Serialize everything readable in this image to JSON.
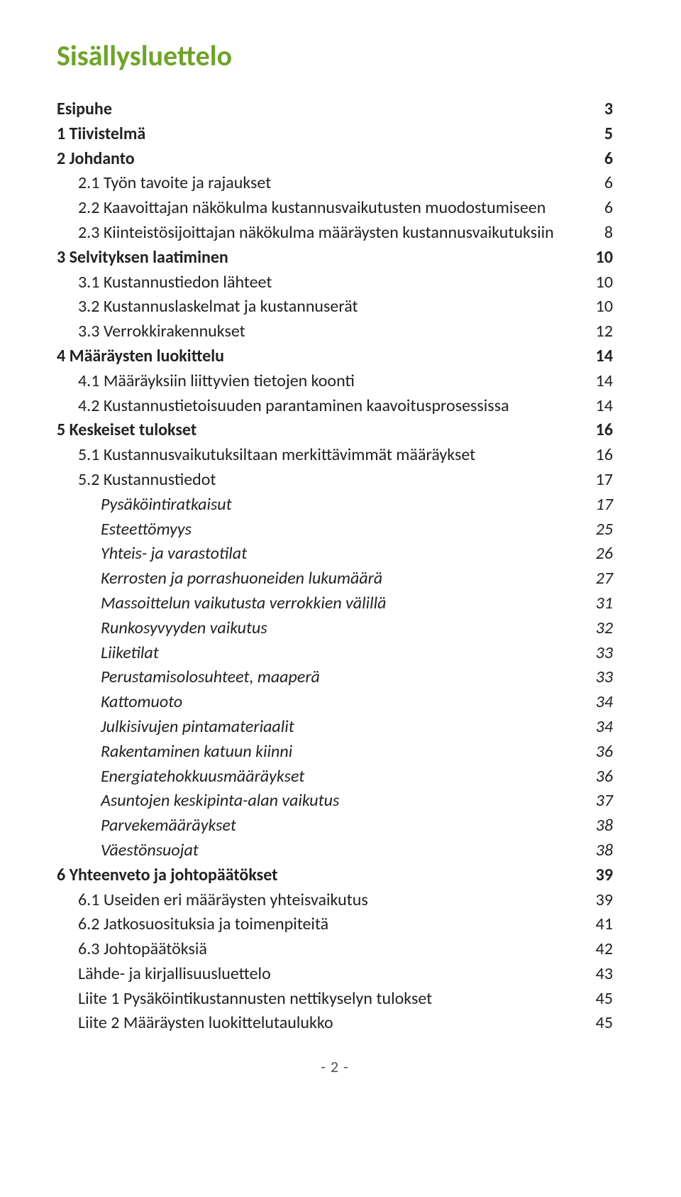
{
  "title": "Sisällysluettelo",
  "footer": "- 2 -",
  "title_color": "#6fa32a",
  "text_color": "#222222",
  "toc": [
    {
      "label": "Esipuhe",
      "page": "3",
      "bold": true,
      "indent": 0,
      "italic": false
    },
    {
      "label": "1 Tiivistelmä",
      "page": "5",
      "bold": true,
      "indent": 0,
      "italic": false
    },
    {
      "label": "2 Johdanto",
      "page": "6",
      "bold": true,
      "indent": 0,
      "italic": false
    },
    {
      "label": "2.1 Työn tavoite ja rajaukset",
      "page": "6",
      "bold": false,
      "indent": 1,
      "italic": false
    },
    {
      "label": "2.2 Kaavoittajan näkökulma kustannusvaikutusten muodostumiseen",
      "page": "6",
      "bold": false,
      "indent": 1,
      "italic": false
    },
    {
      "label": "2.3 Kiinteistösijoittajan näkökulma määräysten kustannusvaikutuksiin",
      "page": "8",
      "bold": false,
      "indent": 1,
      "italic": false
    },
    {
      "label": "3 Selvityksen laatiminen",
      "page": "10",
      "bold": true,
      "indent": 0,
      "italic": false
    },
    {
      "label": "3.1 Kustannustiedon lähteet",
      "page": "10",
      "bold": false,
      "indent": 1,
      "italic": false
    },
    {
      "label": "3.2 Kustannuslaskelmat ja kustannuserät",
      "page": "10",
      "bold": false,
      "indent": 1,
      "italic": false
    },
    {
      "label": "3.3 Verrokkirakennukset",
      "page": "12",
      "bold": false,
      "indent": 1,
      "italic": false
    },
    {
      "label": "4 Määräysten luokittelu",
      "page": "14",
      "bold": true,
      "indent": 0,
      "italic": false
    },
    {
      "label": "4.1 Määräyksiin liittyvien tietojen koonti",
      "page": "14",
      "bold": false,
      "indent": 1,
      "italic": false
    },
    {
      "label": "4.2 Kustannustietoisuuden parantaminen kaavoitusprosessissa",
      "page": "14",
      "bold": false,
      "indent": 1,
      "italic": false
    },
    {
      "label": "5 Keskeiset tulokset",
      "page": "16",
      "bold": true,
      "indent": 0,
      "italic": false
    },
    {
      "label": "5.1 Kustannusvaikutuksiltaan merkittävimmät määräykset",
      "page": "16",
      "bold": false,
      "indent": 1,
      "italic": false
    },
    {
      "label": "5.2 Kustannustiedot",
      "page": "17",
      "bold": false,
      "indent": 1,
      "italic": false
    },
    {
      "label": "Pysäköintiratkaisut",
      "page": "17",
      "bold": false,
      "indent": 2,
      "italic": true
    },
    {
      "label": "Esteettömyys",
      "page": "25",
      "bold": false,
      "indent": 2,
      "italic": true
    },
    {
      "label": "Yhteis- ja varastotilat",
      "page": "26",
      "bold": false,
      "indent": 2,
      "italic": true
    },
    {
      "label": "Kerrosten ja porrashuoneiden lukumäärä",
      "page": "27",
      "bold": false,
      "indent": 2,
      "italic": true
    },
    {
      "label": "Massoittelun vaikutusta verrokkien välillä",
      "page": "31",
      "bold": false,
      "indent": 2,
      "italic": true
    },
    {
      "label": "Runkosyvyyden vaikutus",
      "page": "32",
      "bold": false,
      "indent": 2,
      "italic": true
    },
    {
      "label": "Liiketilat",
      "page": "33",
      "bold": false,
      "indent": 2,
      "italic": true
    },
    {
      "label": "Perustamisolosuhteet, maaperä",
      "page": "33",
      "bold": false,
      "indent": 2,
      "italic": true
    },
    {
      "label": "Kattomuoto",
      "page": "34",
      "bold": false,
      "indent": 2,
      "italic": true
    },
    {
      "label": "Julkisivujen pintamateriaalit",
      "page": "34",
      "bold": false,
      "indent": 2,
      "italic": true
    },
    {
      "label": "Rakentaminen katuun kiinni",
      "page": "36",
      "bold": false,
      "indent": 2,
      "italic": true
    },
    {
      "label": "Energiatehokkuusmääräykset",
      "page": "36",
      "bold": false,
      "indent": 2,
      "italic": true
    },
    {
      "label": "Asuntojen keskipinta-alan vaikutus",
      "page": "37",
      "bold": false,
      "indent": 2,
      "italic": true
    },
    {
      "label": "Parvekemääräykset",
      "page": "38",
      "bold": false,
      "indent": 2,
      "italic": true
    },
    {
      "label": "Väestönsuojat",
      "page": "38",
      "bold": false,
      "indent": 2,
      "italic": true
    },
    {
      "label": "6 Yhteenveto ja johtopäätökset",
      "page": "39",
      "bold": true,
      "indent": 0,
      "italic": false
    },
    {
      "label": "6.1 Useiden eri määräysten yhteisvaikutus",
      "page": "39",
      "bold": false,
      "indent": 1,
      "italic": false
    },
    {
      "label": "6.2 Jatkosuosituksia ja toimenpiteitä",
      "page": "41",
      "bold": false,
      "indent": 1,
      "italic": false
    },
    {
      "label": "6.3 Johtopäätöksiä",
      "page": "42",
      "bold": false,
      "indent": 1,
      "italic": false
    },
    {
      "label": "Lähde- ja kirjallisuusluettelo",
      "page": "43",
      "bold": false,
      "indent": 1,
      "italic": false
    },
    {
      "label": "Liite 1 Pysäköintikustannusten nettikyselyn tulokset",
      "page": "45",
      "bold": false,
      "indent": 1,
      "italic": false
    },
    {
      "label": "Liite 2 Määräysten luokittelutaulukko",
      "page": "45",
      "bold": false,
      "indent": 1,
      "italic": false
    }
  ]
}
